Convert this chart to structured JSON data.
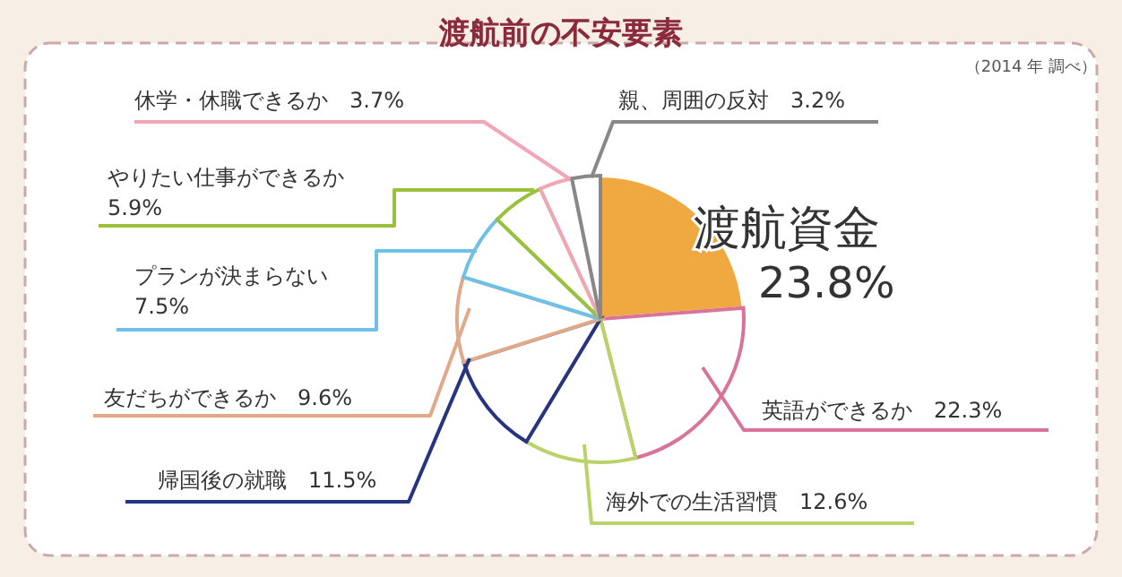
{
  "chart_data": {
    "type": "pie",
    "title": "渡航前の不安要素",
    "annotations": [
      "（2014 年 調べ）"
    ],
    "categories": [
      "渡航資金",
      "英語ができるか",
      "海外での生活習慣",
      "帰国後の就職",
      "友だちができるか",
      "プランが決まらない",
      "やりたい仕事ができるか",
      "休学・休職できるか",
      "親、周囲の反対"
    ],
    "values": [
      23.8,
      22.3,
      12.6,
      11.5,
      9.6,
      7.5,
      5.9,
      3.7,
      3.2
    ],
    "colors": [
      "#f0a840",
      "#d9739a",
      "#b9d36a",
      "#27347f",
      "#e0a98a",
      "#6ec0e8",
      "#99c23a",
      "#f2a5b5",
      "#888888"
    ],
    "value_labels": [
      "23.8%",
      "22.3%",
      "12.6%",
      "11.5%",
      "9.6%",
      "7.5%",
      "5.9%",
      "3.7%",
      "3.2%"
    ]
  }
}
